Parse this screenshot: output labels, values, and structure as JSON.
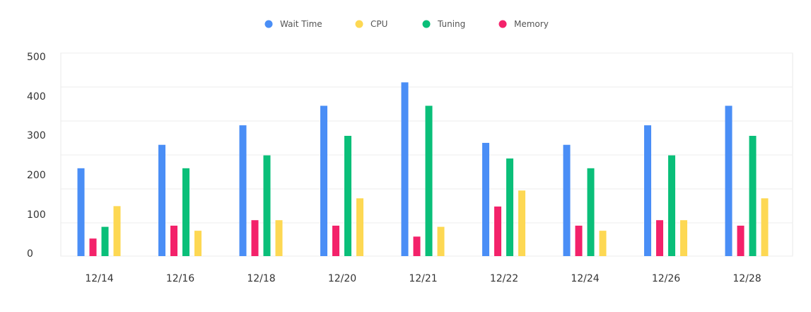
{
  "chart_data": {
    "type": "bar",
    "categories": [
      "12/14",
      "12/16",
      "12/18",
      "12/20",
      "12/21",
      "12/22",
      "12/24",
      "12/26",
      "12/28"
    ],
    "series": [
      {
        "name": "Wait Time",
        "color": "#4a8ef6",
        "values": [
          225,
          285,
          335,
          385,
          445,
          290,
          285,
          335,
          385
        ]
      },
      {
        "name": "Memory",
        "color": "#f3226a",
        "values": [
          45,
          78,
          92,
          78,
          50,
          127,
          78,
          92,
          78
        ]
      },
      {
        "name": "Tuning",
        "color": "#0abf79",
        "values": [
          75,
          225,
          258,
          308,
          385,
          250,
          225,
          258,
          308
        ]
      },
      {
        "name": "CPU",
        "color": "#fdd853",
        "values": [
          128,
          65,
          92,
          148,
          75,
          168,
          65,
          92,
          148
        ]
      }
    ],
    "legend_order": [
      "Wait Time",
      "CPU",
      "Tuning",
      "Memory"
    ],
    "legend_position": "top-center",
    "y_ticks": [
      "0",
      "100",
      "200",
      "300",
      "400",
      "500"
    ],
    "ylim": [
      0,
      520
    ],
    "grid": true
  }
}
